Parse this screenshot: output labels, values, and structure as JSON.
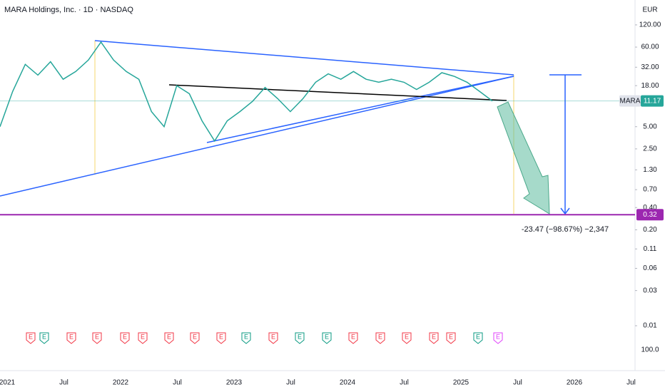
{
  "chart_data": {
    "type": "line",
    "title": "MARA Holdings, Inc. · 1D · NASDAQ",
    "currency": "EUR",
    "log_scale": true,
    "ylim": [
      261,
      0.0048
    ],
    "yticks": [
      {
        "value": 120,
        "label": "120.00"
      },
      {
        "value": 60,
        "label": "60.00"
      },
      {
        "value": 32,
        "label": "32.00"
      },
      {
        "value": 18,
        "label": "18.00"
      },
      {
        "value": 5,
        "label": "5.00"
      },
      {
        "value": 2.5,
        "label": "2.50"
      },
      {
        "value": 1.3,
        "label": "1.30"
      },
      {
        "value": 0.7,
        "label": "0.70"
      },
      {
        "value": 0.4,
        "label": "0.40"
      },
      {
        "value": 0.2,
        "label": "0.20"
      },
      0.11,
      0.06,
      0.03,
      0.01
    ],
    "volume_scale_label": "100.0",
    "x_axis_labels": [
      "2021",
      "Jul",
      "2022",
      "Jul",
      "2023",
      "Jul",
      "2024",
      "Jul",
      "2025",
      "Jul",
      "2026",
      "Jul"
    ],
    "series": [
      {
        "name": "MARA",
        "color": "#26a69a",
        "values": [
          5,
          15,
          35,
          25,
          38,
          22,
          28,
          40,
          70,
          40,
          28,
          22,
          8,
          5,
          18,
          14,
          6,
          3.2,
          6,
          8,
          11,
          17,
          12,
          8,
          12,
          20,
          26,
          22,
          28,
          22,
          20,
          22,
          20,
          16,
          20,
          27,
          24,
          20,
          15,
          11.17
        ]
      }
    ],
    "last_price": {
      "symbol": "MARA",
      "value": 11.17,
      "label": "11.17"
    },
    "target_level": {
      "value": 0.32,
      "label": "0.32",
      "color": "#9c27b0"
    },
    "measure_label": "-23.47 (−98.67%) −2,347",
    "earnings_markers": [
      {
        "label": "E",
        "color": "#f23645"
      },
      {
        "label": "E",
        "color": "#089981"
      },
      {
        "label": "E",
        "color": "#f23645"
      },
      {
        "label": "E",
        "color": "#f23645"
      },
      {
        "label": "E",
        "color": "#f23645"
      },
      {
        "label": "E",
        "color": "#f23645"
      },
      {
        "label": "E",
        "color": "#f23645"
      },
      {
        "label": "E",
        "color": "#f23645"
      },
      {
        "label": "E",
        "color": "#f23645"
      },
      {
        "label": "E",
        "color": "#089981"
      },
      {
        "label": "E",
        "color": "#f23645"
      },
      {
        "label": "E",
        "color": "#089981"
      },
      {
        "label": "E",
        "color": "#089981"
      },
      {
        "label": "E",
        "color": "#f23645"
      },
      {
        "label": "E",
        "color": "#f23645"
      },
      {
        "label": "E",
        "color": "#f23645"
      },
      {
        "label": "E",
        "color": "#f23645"
      },
      {
        "label": "E",
        "color": "#f23645"
      },
      {
        "label": "E",
        "color": "#089981"
      },
      {
        "label": "E",
        "color": "#e040fb"
      }
    ]
  }
}
